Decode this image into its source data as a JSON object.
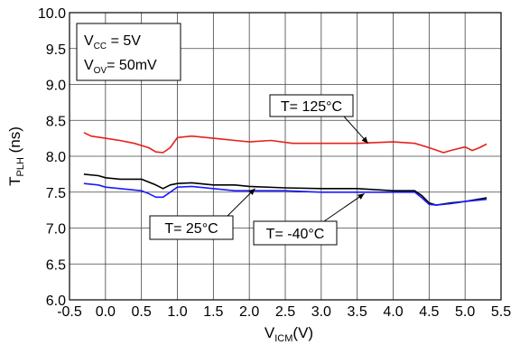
{
  "chart_data": {
    "type": "line",
    "ylabel": {
      "main": "T",
      "sub": "PLH",
      "unit": " (ns)"
    },
    "xlabel": {
      "main": "V",
      "sub": "ICM",
      "unit": "(V)"
    },
    "xlim": [
      -0.5,
      5.5
    ],
    "ylim": [
      6.0,
      10.0
    ],
    "x_ticks": [
      "-0.5",
      "0.0",
      "0.5",
      "1.0",
      "1.5",
      "2.0",
      "2.5",
      "3.0",
      "3.5",
      "4.0",
      "4.5",
      "5.0",
      "5.5"
    ],
    "y_ticks": [
      "6.0",
      "6.5",
      "7.0",
      "7.5",
      "8.0",
      "8.5",
      "9.0",
      "9.5",
      "10.0"
    ],
    "grid": true,
    "conditions": [
      {
        "main": "V",
        "sub": "CC",
        "value": " = 5V"
      },
      {
        "main": "V",
        "sub": "OV",
        "value": "= 50mV"
      }
    ],
    "series": [
      {
        "name": "T= 125°C",
        "color": "#e8201c",
        "x": [
          -0.3,
          -0.2,
          0.0,
          0.2,
          0.4,
          0.6,
          0.7,
          0.8,
          0.9,
          1.0,
          1.2,
          1.5,
          1.8,
          2.0,
          2.3,
          2.6,
          3.0,
          3.5,
          4.0,
          4.3,
          4.5,
          4.7,
          4.8,
          5.0,
          5.1,
          5.2,
          5.3
        ],
        "y": [
          8.33,
          8.28,
          8.25,
          8.22,
          8.18,
          8.12,
          8.06,
          8.05,
          8.12,
          8.26,
          8.28,
          8.25,
          8.22,
          8.2,
          8.22,
          8.18,
          8.18,
          8.18,
          8.2,
          8.18,
          8.12,
          8.05,
          8.08,
          8.13,
          8.08,
          8.12,
          8.17
        ]
      },
      {
        "name": "T= 25°C",
        "color": "#000000",
        "x": [
          -0.3,
          -0.1,
          0.0,
          0.2,
          0.5,
          0.7,
          0.8,
          0.9,
          1.0,
          1.2,
          1.5,
          1.8,
          2.0,
          2.5,
          3.0,
          3.5,
          4.0,
          4.3,
          4.4,
          4.5,
          4.6,
          4.8,
          5.0,
          5.3
        ],
        "y": [
          7.75,
          7.73,
          7.7,
          7.68,
          7.68,
          7.6,
          7.55,
          7.6,
          7.62,
          7.63,
          7.6,
          7.6,
          7.58,
          7.56,
          7.55,
          7.55,
          7.52,
          7.52,
          7.45,
          7.35,
          7.32,
          7.35,
          7.37,
          7.42
        ]
      },
      {
        "name": "T= -40°C",
        "color": "#1a1aff",
        "x": [
          -0.3,
          -0.1,
          0.0,
          0.2,
          0.5,
          0.6,
          0.7,
          0.8,
          0.9,
          1.0,
          1.2,
          1.5,
          1.8,
          2.0,
          2.5,
          3.0,
          3.5,
          4.0,
          4.3,
          4.4,
          4.5,
          4.6,
          4.8,
          5.0,
          5.3
        ],
        "y": [
          7.62,
          7.6,
          7.57,
          7.55,
          7.52,
          7.48,
          7.43,
          7.43,
          7.5,
          7.57,
          7.58,
          7.55,
          7.52,
          7.52,
          7.52,
          7.5,
          7.5,
          7.5,
          7.5,
          7.42,
          7.33,
          7.32,
          7.34,
          7.37,
          7.4
        ]
      }
    ],
    "annotations": [
      {
        "text": "T= 125°C",
        "series": 0,
        "point": [
          3.65,
          8.18
        ]
      },
      {
        "text": "T= 25°C",
        "series": 1,
        "point": [
          2.08,
          7.55
        ]
      },
      {
        "text": "T= -40°C",
        "series": 2,
        "point": [
          3.6,
          7.48
        ]
      }
    ]
  }
}
